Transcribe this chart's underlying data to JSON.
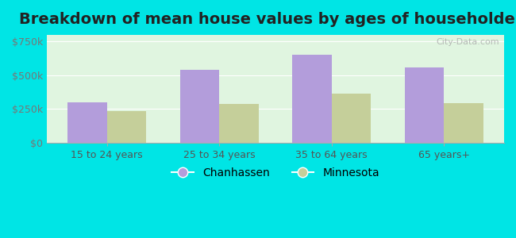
{
  "title": "Breakdown of mean house values by ages of householders",
  "categories": [
    "15 to 24 years",
    "25 to 34 years",
    "35 to 64 years",
    "65 years+"
  ],
  "chanhassen": [
    300000,
    540000,
    650000,
    560000
  ],
  "minnesota": [
    235000,
    285000,
    365000,
    295000
  ],
  "bar_color_chanhassen": "#b39ddb",
  "bar_color_minnesota": "#c5cf9a",
  "ylim": [
    0,
    800000
  ],
  "yticks": [
    0,
    250000,
    500000,
    750000
  ],
  "ytick_labels": [
    "$0",
    "$250k",
    "$500k",
    "$750k"
  ],
  "legend_chanhassen": "Chanhassen",
  "legend_minnesota": "Minnesota",
  "background_color": "#e0f5e0",
  "outer_background": "#00e5e5",
  "title_fontsize": 14,
  "bar_width": 0.35
}
